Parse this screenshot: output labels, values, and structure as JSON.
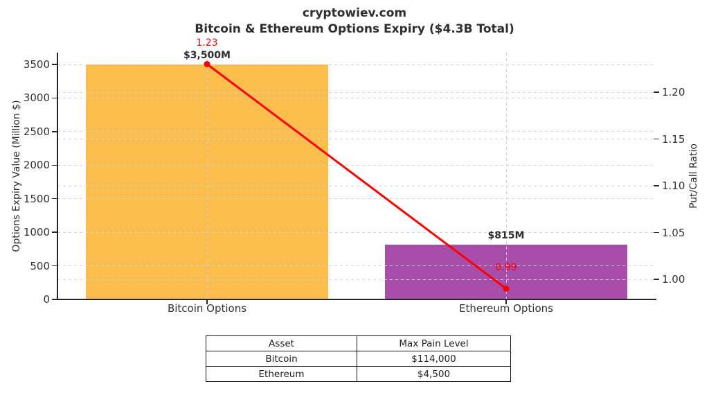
{
  "title": {
    "line1": "cryptowiev.com",
    "line2": "Bitcoin & Ethereum Options Expiry ($4.3B Total)"
  },
  "chart_data": {
    "type": "bar+line",
    "categories": [
      "Bitcoin Options",
      "Ethereum Options"
    ],
    "series": [
      {
        "name": "Options Expiry Value",
        "type": "bar",
        "values": [
          3500,
          815
        ],
        "labels": [
          "$3,500M",
          "$815M"
        ],
        "colors": [
          "#FBBE4D",
          "#A84DA9"
        ]
      },
      {
        "name": "Put/Call Ratio",
        "type": "line",
        "values": [
          1.23,
          0.99
        ],
        "labels": [
          "1.23",
          "0.99"
        ],
        "color": "#FE0000"
      }
    ],
    "left_axis": {
      "label": "Options Expiry Value (Million $)",
      "ticks": [
        0,
        500,
        1000,
        1500,
        2000,
        2500,
        3000,
        3500
      ],
      "range": [
        0,
        3675
      ]
    },
    "right_axis": {
      "label": "Put/Call Ratio",
      "ticks": [
        "1.00",
        "1.05",
        "1.10",
        "1.15",
        "1.20"
      ],
      "range": [
        0.985,
        1.245
      ]
    },
    "grid": "dashed-lightgray-both-axes",
    "legend": "none"
  },
  "table": {
    "headers": [
      "Asset",
      "Max Pain Level"
    ],
    "rows": [
      [
        "Bitcoin",
        "$114,000"
      ],
      [
        "Ethereum",
        "$4,500"
      ]
    ]
  }
}
